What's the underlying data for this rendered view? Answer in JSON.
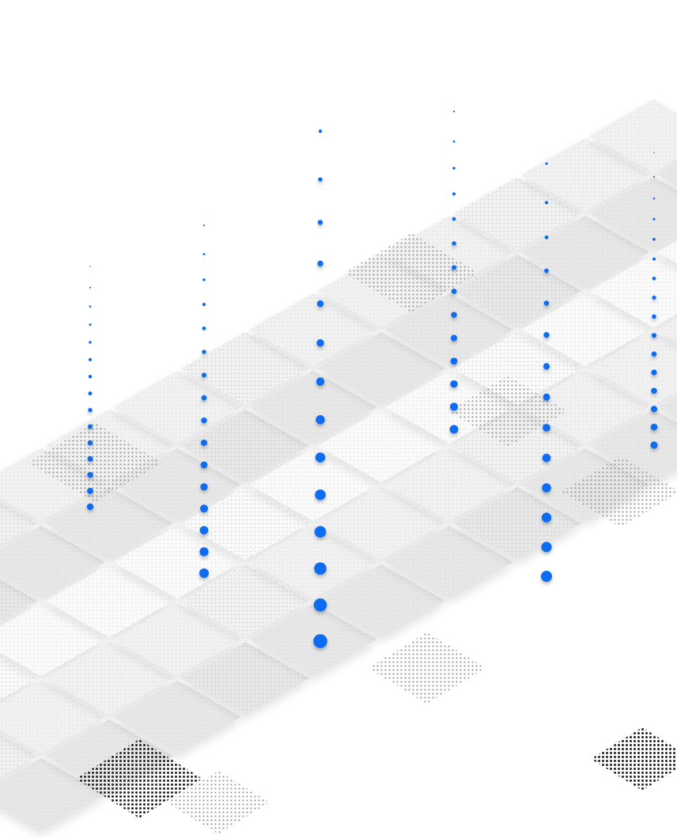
{
  "colors": {
    "background": "#ffffff",
    "dot_accent": "#0a6cf0",
    "tile_light": "#f1f1f1",
    "tile_mid": "#e7e7e7",
    "tile_edge": "#fafafa",
    "halftone_dark": "#222222",
    "halftone_light": "#c9c9c9"
  },
  "graphic": {
    "description_free": true,
    "icon": "isometric-halftone-grid",
    "dot_columns_count": 6,
    "dot_columns": [
      {
        "name": "column-1",
        "dots": 15
      },
      {
        "name": "column-2",
        "dots": 16
      },
      {
        "name": "column-3",
        "dots": 14
      },
      {
        "name": "column-4",
        "dots": 14
      },
      {
        "name": "column-5",
        "dots": 14
      },
      {
        "name": "column-6",
        "dots": 16
      }
    ]
  }
}
